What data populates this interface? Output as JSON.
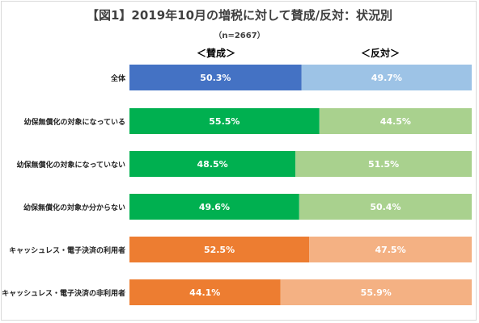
{
  "chart_data": {
    "type": "bar",
    "stacked": true,
    "orientation": "horizontal",
    "title": "【図1】2019年10月の増税に対して賛成/反対：状況別",
    "subtitle": "（n=2667）",
    "column_headers": [
      "＜賛成＞",
      "＜反対＞"
    ],
    "categories": [
      "全体",
      "幼保無償化の対象になっている",
      "幼保無償化の対象になっていない",
      "幼保無償化の対象か分からない",
      "キャッシュレス・電子決済の利用者",
      "キャッシュレス・電子決済の非利用者"
    ],
    "series": [
      {
        "name": "＜賛成＞",
        "values": [
          50.3,
          55.5,
          48.5,
          49.6,
          52.5,
          44.1
        ]
      },
      {
        "name": "＜反対＞",
        "values": [
          49.7,
          44.5,
          51.5,
          50.4,
          47.5,
          55.9
        ]
      }
    ],
    "data_labels": [
      [
        "50.3%",
        "55.5%",
        "48.5%",
        "49.6%",
        "52.5%",
        "44.1%"
      ],
      [
        "49.7%",
        "44.5%",
        "51.5%",
        "50.4%",
        "47.5%",
        "55.9%"
      ]
    ],
    "colors": {
      "support": [
        "#4472c4",
        "#00b050",
        "#00b050",
        "#00b050",
        "#ed7d31",
        "#ed7d31"
      ],
      "oppose": [
        "#9dc3e6",
        "#a9d18e",
        "#a9d18e",
        "#a9d18e",
        "#f4b183",
        "#f4b183"
      ]
    },
    "xlim": [
      0,
      100
    ],
    "grid": false,
    "legend": "none"
  }
}
